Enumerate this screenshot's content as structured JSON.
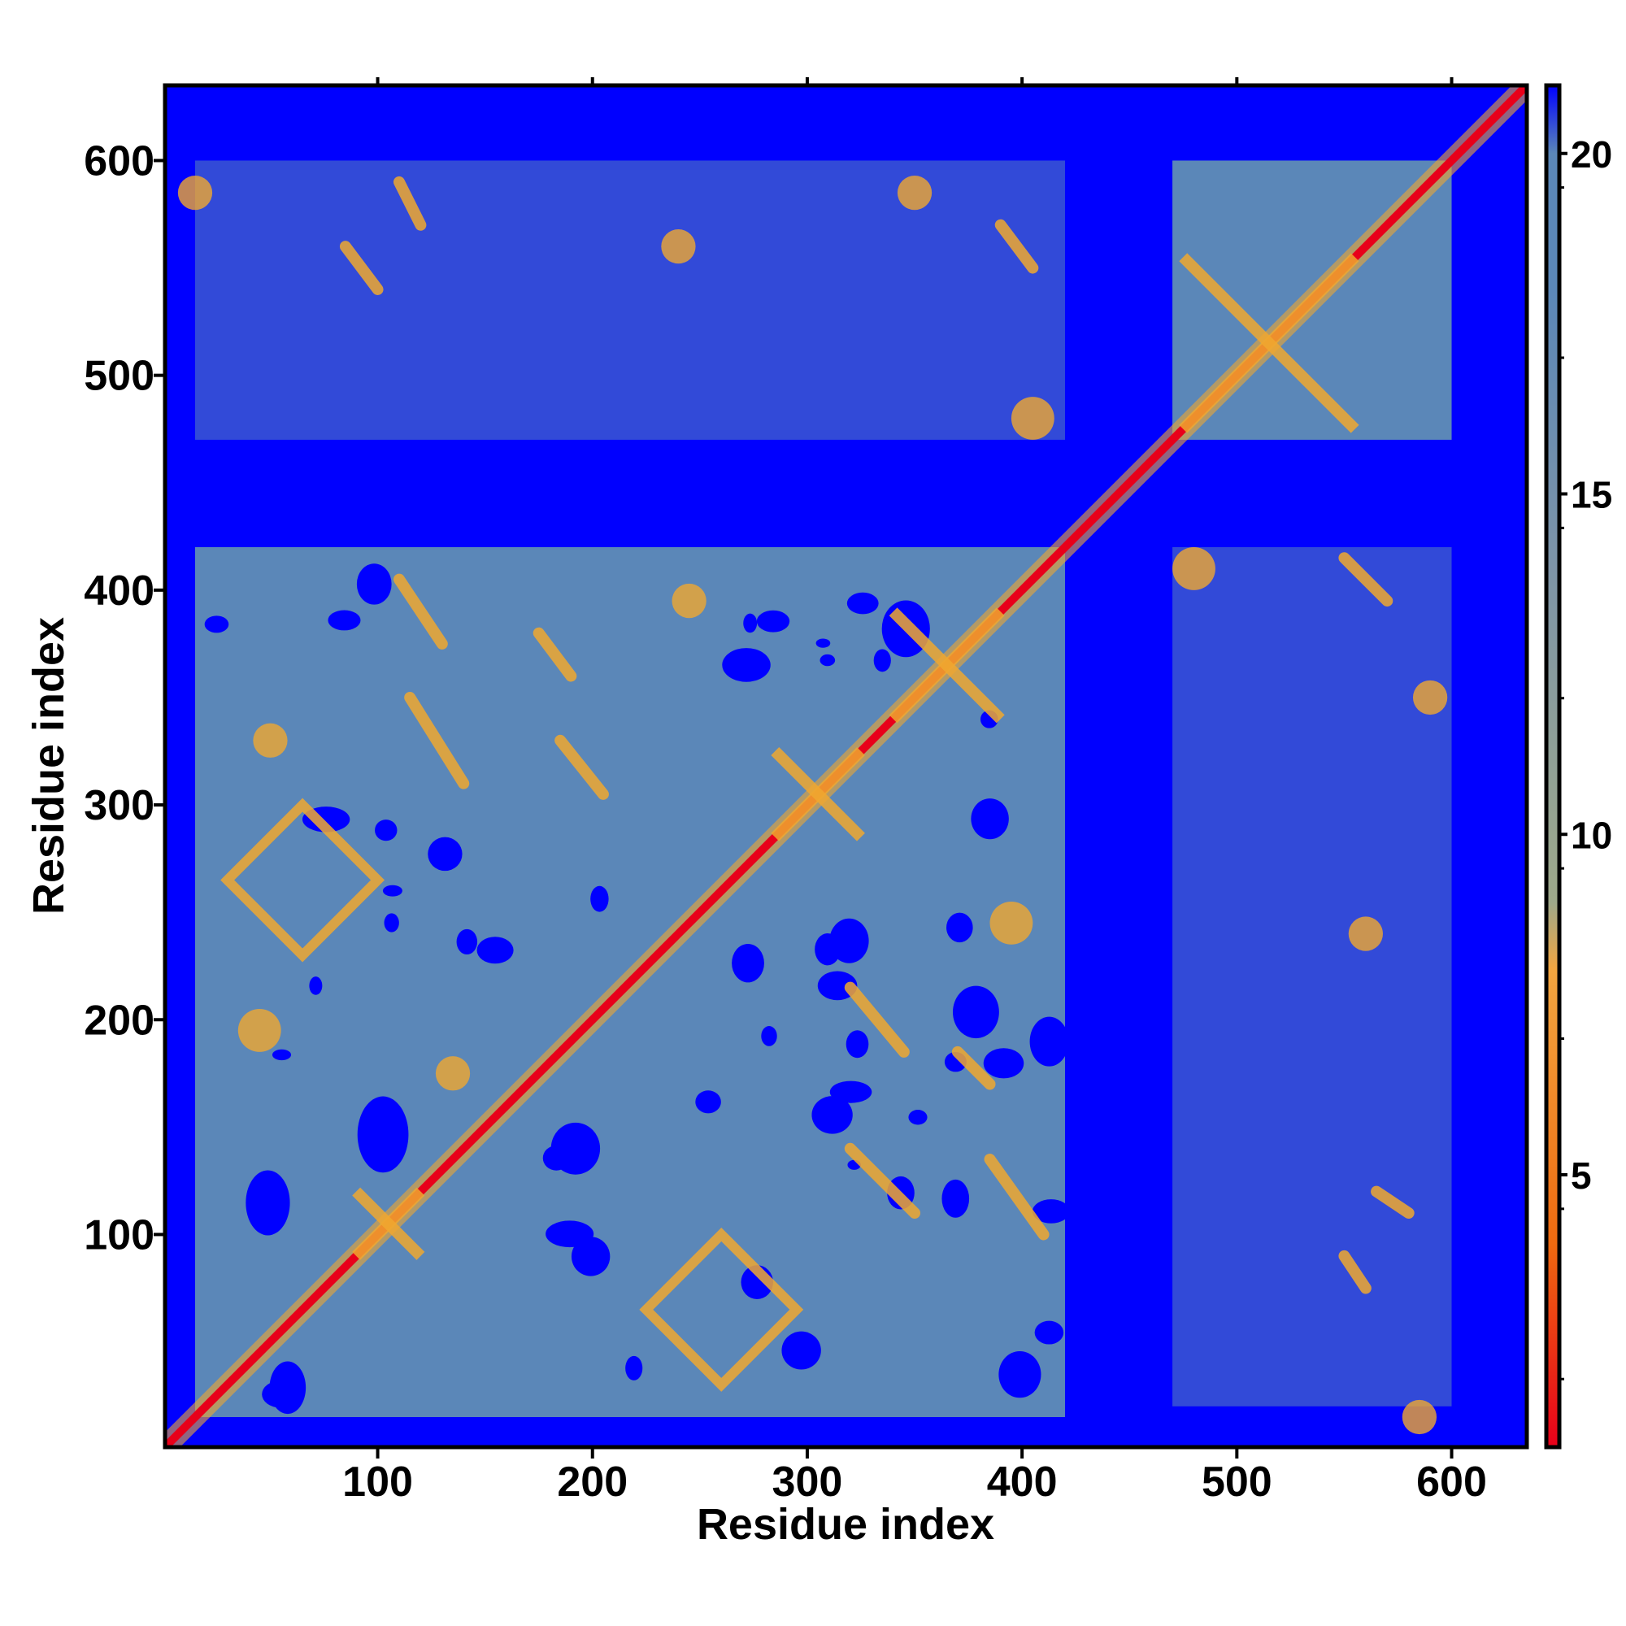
{
  "chart_data": {
    "type": "heatmap",
    "title": "",
    "xlabel": "Residue index",
    "ylabel": "Residue index",
    "n_residues": 635,
    "xlim": [
      1,
      635
    ],
    "ylim": [
      1,
      635
    ],
    "x_ticks": [
      100,
      200,
      300,
      400,
      500,
      600
    ],
    "y_ticks": [
      100,
      200,
      300,
      400,
      500,
      600
    ],
    "colorbar": {
      "range": [
        1,
        21
      ],
      "ticks": [
        5,
        10,
        15,
        20
      ],
      "stops": [
        {
          "value": 1,
          "color": "#e8001a"
        },
        {
          "value": 4,
          "color": "#ee6a10"
        },
        {
          "value": 8,
          "color": "#f3a640"
        },
        {
          "value": 9,
          "color": "#9ea98a"
        },
        {
          "value": 14,
          "color": "#7d94a8"
        },
        {
          "value": 18,
          "color": "#5b87b8"
        },
        {
          "value": 20,
          "color": "#5b87b8"
        },
        {
          "value": 21,
          "color": "#0000ff"
        }
      ]
    },
    "background_color": "#0000ff",
    "contact_color": "#5b87b8",
    "near_color": "#f0a830",
    "close_color": "#e8001a",
    "grid": false,
    "regions": [
      {
        "x": [
          15,
          420
        ],
        "y": [
          15,
          420
        ],
        "level": "contact"
      },
      {
        "x": [
          470,
          600
        ],
        "y": [
          470,
          600
        ],
        "level": "contact"
      },
      {
        "x": [
          470,
          600
        ],
        "y": [
          20,
          420
        ],
        "level": "contact-sparse"
      },
      {
        "x": [
          15,
          420
        ],
        "y": [
          470,
          600
        ],
        "level": "contact-sparse"
      }
    ],
    "features": [
      {
        "shape": "diagonal",
        "from": 1,
        "to": 635,
        "level": "close"
      },
      {
        "shape": "diamond",
        "cx": 65,
        "cy": 265,
        "r": 35,
        "level": "near"
      },
      {
        "shape": "diamond",
        "cx": 260,
        "cy": 65,
        "r": 35,
        "level": "near"
      },
      {
        "shape": "cross",
        "cx": 515,
        "cy": 515,
        "r": 40,
        "level": "near"
      },
      {
        "shape": "cross",
        "cx": 365,
        "cy": 365,
        "r": 25,
        "level": "near"
      },
      {
        "shape": "cross",
        "cx": 305,
        "cy": 305,
        "r": 20,
        "level": "near"
      },
      {
        "shape": "cross",
        "cx": 105,
        "cy": 105,
        "r": 15,
        "level": "near"
      },
      {
        "shape": "line",
        "from": [
          110,
          405
        ],
        "to": [
          130,
          375
        ],
        "level": "near"
      },
      {
        "shape": "line",
        "from": [
          115,
          350
        ],
        "to": [
          140,
          310
        ],
        "level": "near"
      },
      {
        "shape": "line",
        "from": [
          175,
          380
        ],
        "to": [
          190,
          360
        ],
        "level": "near"
      },
      {
        "shape": "line",
        "from": [
          185,
          330
        ],
        "to": [
          205,
          305
        ],
        "level": "near"
      },
      {
        "shape": "line",
        "from": [
          320,
          140
        ],
        "to": [
          350,
          110
        ],
        "level": "near"
      },
      {
        "shape": "line",
        "from": [
          320,
          215
        ],
        "to": [
          345,
          185
        ],
        "level": "near"
      },
      {
        "shape": "line",
        "from": [
          385,
          135
        ],
        "to": [
          410,
          100
        ],
        "level": "near"
      },
      {
        "shape": "line",
        "from": [
          370,
          185
        ],
        "to": [
          385,
          170
        ],
        "level": "near"
      },
      {
        "shape": "line",
        "from": [
          85,
          560
        ],
        "to": [
          100,
          540
        ],
        "level": "near"
      },
      {
        "shape": "line",
        "from": [
          110,
          590
        ],
        "to": [
          120,
          570
        ],
        "level": "near"
      },
      {
        "shape": "line",
        "from": [
          390,
          570
        ],
        "to": [
          405,
          550
        ],
        "level": "near"
      },
      {
        "shape": "line",
        "from": [
          550,
          415
        ],
        "to": [
          570,
          395
        ],
        "level": "near"
      },
      {
        "shape": "line",
        "from": [
          550,
          90
        ],
        "to": [
          560,
          75
        ],
        "level": "near"
      },
      {
        "shape": "line",
        "from": [
          565,
          120
        ],
        "to": [
          580,
          110
        ],
        "level": "near"
      },
      {
        "shape": "spot",
        "cx": 15,
        "cy": 585,
        "r": 8,
        "level": "near"
      },
      {
        "shape": "spot",
        "cx": 240,
        "cy": 560,
        "r": 8,
        "level": "near"
      },
      {
        "shape": "spot",
        "cx": 350,
        "cy": 585,
        "r": 8,
        "level": "near"
      },
      {
        "shape": "spot",
        "cx": 405,
        "cy": 480,
        "r": 10,
        "level": "near"
      },
      {
        "shape": "spot",
        "cx": 245,
        "cy": 395,
        "r": 8,
        "level": "near"
      },
      {
        "shape": "spot",
        "cx": 480,
        "cy": 410,
        "r": 10,
        "level": "near"
      },
      {
        "shape": "spot",
        "cx": 590,
        "cy": 350,
        "r": 8,
        "level": "near"
      },
      {
        "shape": "spot",
        "cx": 560,
        "cy": 240,
        "r": 8,
        "level": "near"
      },
      {
        "shape": "spot",
        "cx": 585,
        "cy": 15,
        "r": 8,
        "level": "near"
      },
      {
        "shape": "spot",
        "cx": 395,
        "cy": 245,
        "r": 10,
        "level": "near"
      },
      {
        "shape": "spot",
        "cx": 135,
        "cy": 175,
        "r": 8,
        "level": "near"
      },
      {
        "shape": "spot",
        "cx": 45,
        "cy": 195,
        "r": 10,
        "level": "near"
      },
      {
        "shape": "spot",
        "cx": 50,
        "cy": 330,
        "r": 8,
        "level": "near"
      }
    ]
  }
}
